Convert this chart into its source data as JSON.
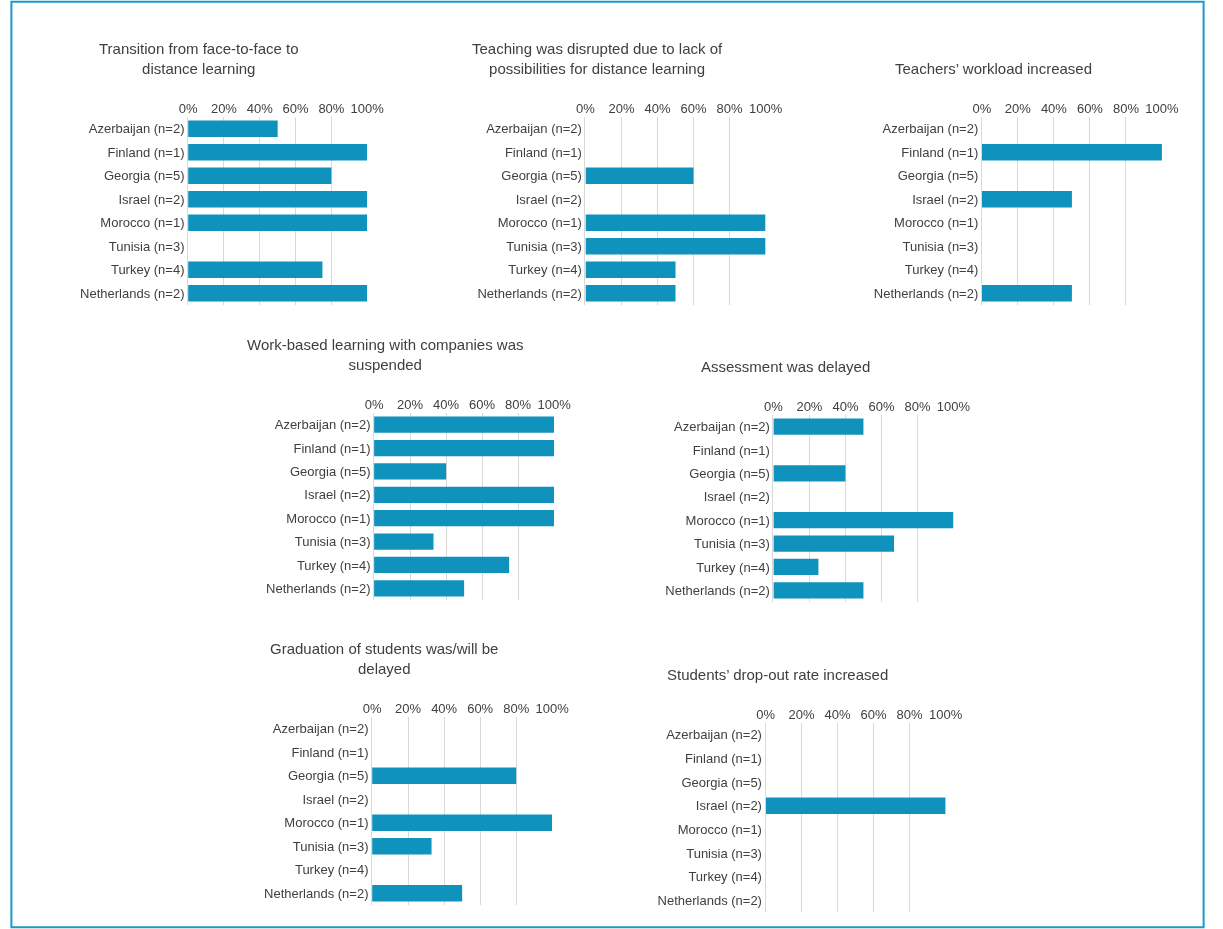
{
  "chart_data": [
    {
      "type": "bar",
      "orientation": "horizontal",
      "title": "Transition from face-to-face to distance learning",
      "categories": [
        "Azerbaijan (n=2)",
        "Finland (n=1)",
        "Georgia (n=5)",
        "Israel (n=2)",
        "Morocco (n=1)",
        "Tunisia (n=3)",
        "Turkey (n=4)",
        "Netherlands (n=2)"
      ],
      "values": [
        50,
        100,
        80,
        100,
        100,
        0,
        75,
        100
      ],
      "color": "#0f93bd",
      "xlim": [
        0,
        100
      ],
      "xticks": [
        {
          "value": 0,
          "label": "0%"
        },
        {
          "value": 20,
          "label": "20%"
        },
        {
          "value": 40,
          "label": "40%"
        },
        {
          "value": 60,
          "label": "60%"
        },
        {
          "value": 80,
          "label": "80%"
        },
        {
          "value": 100,
          "label": "100%"
        }
      ],
      "grid": "x",
      "legend": false
    },
    {
      "type": "bar",
      "orientation": "horizontal",
      "title": "Teaching was disrupted due to lack of possibilities for distance learning",
      "categories": [
        "Azerbaijan (n=2)",
        "Finland (n=1)",
        "Georgia (n=5)",
        "Israel (n=2)",
        "Morocco (n=1)",
        "Tunisia (n=3)",
        "Turkey (n=4)",
        "Netherlands (n=2)"
      ],
      "values": [
        0,
        0,
        60,
        0,
        100,
        100,
        50,
        50
      ],
      "color": "#0f93bd",
      "xlim": [
        0,
        100
      ],
      "xticks": [
        {
          "value": 0,
          "label": "0%"
        },
        {
          "value": 20,
          "label": "20%"
        },
        {
          "value": 40,
          "label": "40%"
        },
        {
          "value": 60,
          "label": "60%"
        },
        {
          "value": 80,
          "label": "80%"
        },
        {
          "value": 100,
          "label": "100%"
        }
      ],
      "grid": "x",
      "legend": false
    },
    {
      "type": "bar",
      "orientation": "horizontal",
      "title": "Teachers’ workload increased",
      "categories": [
        "Azerbaijan (n=2)",
        "Finland (n=1)",
        "Georgia (n=5)",
        "Israel (n=2)",
        "Morocco (n=1)",
        "Tunisia (n=3)",
        "Turkey (n=4)",
        "Netherlands (n=2)"
      ],
      "values": [
        0,
        100,
        0,
        50,
        0,
        0,
        0,
        50
      ],
      "color": "#0f93bd",
      "xlim": [
        0,
        100
      ],
      "xticks": [
        {
          "value": 0,
          "label": "0%"
        },
        {
          "value": 20,
          "label": "20%"
        },
        {
          "value": 40,
          "label": "40%"
        },
        {
          "value": 60,
          "label": "60%"
        },
        {
          "value": 80,
          "label": "80%"
        },
        {
          "value": 100,
          "label": "100%"
        }
      ],
      "grid": "x",
      "legend": false
    },
    {
      "type": "bar",
      "orientation": "horizontal",
      "title": "Work-based learning with companies was suspended",
      "categories": [
        "Azerbaijan (n=2)",
        "Finland (n=1)",
        "Georgia (n=5)",
        "Israel (n=2)",
        "Morocco (n=1)",
        "Tunisia (n=3)",
        "Turkey (n=4)",
        "Netherlands (n=2)"
      ],
      "values": [
        100,
        100,
        40,
        100,
        100,
        33,
        75,
        50
      ],
      "color": "#0f93bd",
      "xlim": [
        0,
        100
      ],
      "xticks": [
        {
          "value": 0,
          "label": "0%"
        },
        {
          "value": 20,
          "label": "20%"
        },
        {
          "value": 40,
          "label": "40%"
        },
        {
          "value": 60,
          "label": "60%"
        },
        {
          "value": 80,
          "label": "80%"
        },
        {
          "value": 100,
          "label": "100%"
        }
      ],
      "grid": "x",
      "legend": false
    },
    {
      "type": "bar",
      "orientation": "horizontal",
      "title": "Assessment was delayed",
      "categories": [
        "Azerbaijan (n=2)",
        "Finland (n=1)",
        "Georgia (n=5)",
        "Israel (n=2)",
        "Morocco (n=1)",
        "Tunisia (n=3)",
        "Turkey (n=4)",
        "Netherlands (n=2)"
      ],
      "values": [
        50,
        0,
        40,
        0,
        100,
        67,
        25,
        50
      ],
      "color": "#0f93bd",
      "xlim": [
        0,
        100
      ],
      "xticks": [
        {
          "value": 0,
          "label": "0%"
        },
        {
          "value": 20,
          "label": "20%"
        },
        {
          "value": 40,
          "label": "40%"
        },
        {
          "value": 60,
          "label": "60%"
        },
        {
          "value": 80,
          "label": "80%"
        },
        {
          "value": 100,
          "label": "100%"
        }
      ],
      "grid": "x",
      "legend": false
    },
    {
      "type": "bar",
      "orientation": "horizontal",
      "title": "Graduation of students was/will be delayed",
      "categories": [
        "Azerbaijan (n=2)",
        "Finland (n=1)",
        "Georgia (n=5)",
        "Israel (n=2)",
        "Morocco (n=1)",
        "Tunisia (n=3)",
        "Turkey (n=4)",
        "Netherlands (n=2)"
      ],
      "values": [
        0,
        0,
        80,
        0,
        100,
        33,
        0,
        50
      ],
      "color": "#0f93bd",
      "xlim": [
        0,
        100
      ],
      "xticks": [
        {
          "value": 0,
          "label": "0%"
        },
        {
          "value": 20,
          "label": "20%"
        },
        {
          "value": 40,
          "label": "40%"
        },
        {
          "value": 60,
          "label": "60%"
        },
        {
          "value": 80,
          "label": "80%"
        },
        {
          "value": 100,
          "label": "100%"
        }
      ],
      "grid": "x",
      "legend": false
    },
    {
      "type": "bar",
      "orientation": "horizontal",
      "title": "Students’ drop-out rate increased",
      "categories": [
        "Azerbaijan (n=2)",
        "Finland (n=1)",
        "Georgia (n=5)",
        "Israel (n=2)",
        "Morocco (n=1)",
        "Tunisia (n=3)",
        "Turkey (n=4)",
        "Netherlands (n=2)"
      ],
      "values": [
        0,
        0,
        0,
        100,
        0,
        0,
        0,
        0
      ],
      "color": "#0f93bd",
      "xlim": [
        0,
        100
      ],
      "xticks": [
        {
          "value": 0,
          "label": "0%"
        },
        {
          "value": 20,
          "label": "20%"
        },
        {
          "value": 40,
          "label": "40%"
        },
        {
          "value": 60,
          "label": "60%"
        },
        {
          "value": 80,
          "label": "80%"
        },
        {
          "value": 100,
          "label": "100%"
        }
      ],
      "grid": "x",
      "legend": false
    }
  ]
}
